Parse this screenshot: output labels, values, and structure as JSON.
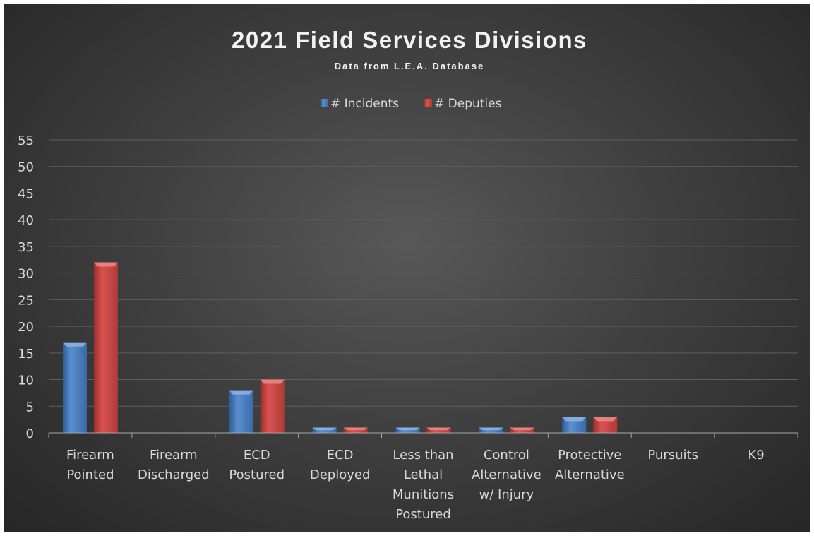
{
  "chart_data": {
    "type": "bar",
    "title": "2021 Field Services Divisions",
    "subtitle": "Data from L.E.A. Database",
    "categories": [
      [
        "Firearm",
        "Pointed"
      ],
      [
        "Firearm",
        "Discharged"
      ],
      [
        "ECD",
        "Postured"
      ],
      [
        "ECD",
        "Deployed"
      ],
      [
        "Less than",
        "Lethal",
        "Munitions",
        "Postured"
      ],
      [
        "Control",
        "Alternative",
        "w/ Injury"
      ],
      [
        "Protective",
        "Alternative"
      ],
      [
        "Pursuits"
      ],
      [
        "K9"
      ]
    ],
    "series": [
      {
        "name": "# Incidents",
        "values": [
          17,
          0,
          8,
          1,
          1,
          1,
          3,
          0,
          0
        ]
      },
      {
        "name": "# Deputies",
        "values": [
          32,
          0,
          10,
          1,
          1,
          1,
          3,
          0,
          0
        ]
      }
    ],
    "ylim": [
      0,
      55
    ],
    "yticks": [
      0,
      5,
      10,
      15,
      20,
      25,
      30,
      35,
      40,
      45,
      50,
      55
    ],
    "grid": true,
    "legend_position": "top"
  },
  "colors": {
    "incidents": "#4a7ebb",
    "deputies": "#be4b48",
    "background": "#404040",
    "text": "#d9d9d9"
  }
}
